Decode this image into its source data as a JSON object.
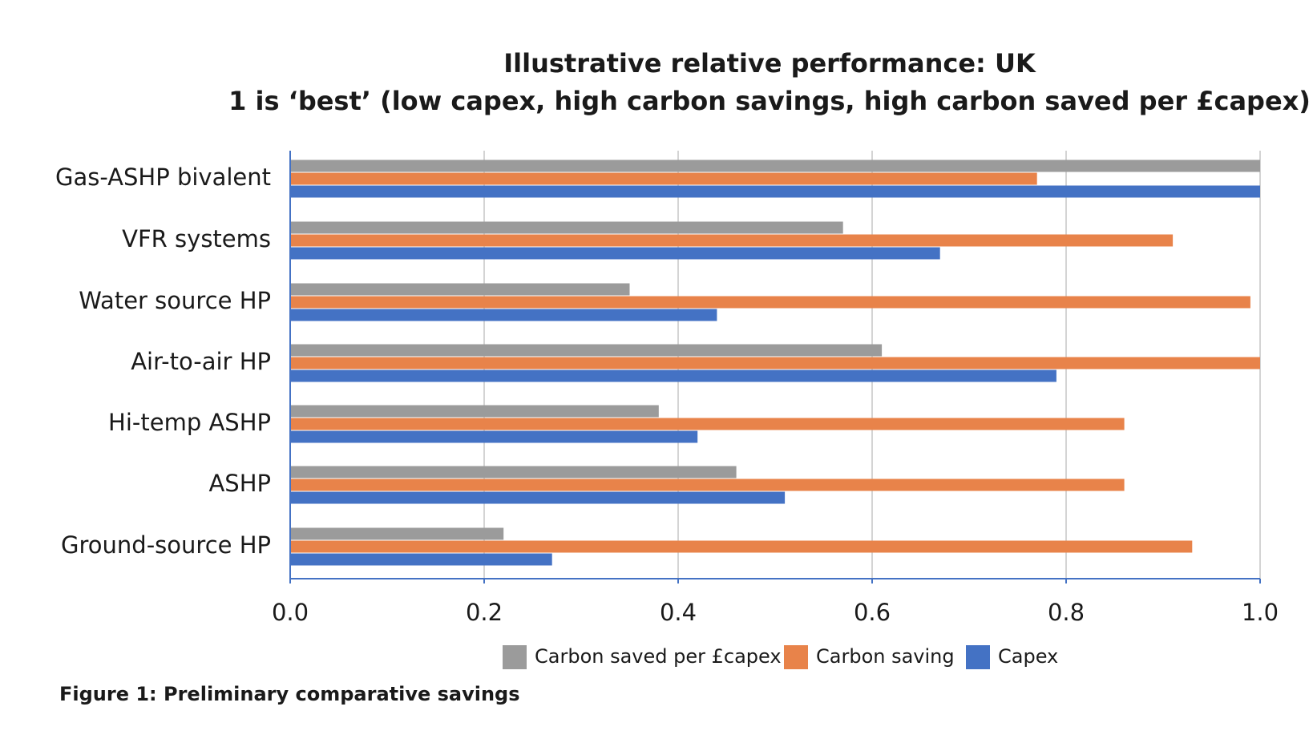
{
  "chart_data": {
    "type": "bar",
    "orientation": "horizontal",
    "title": [
      "Illustrative relative performance: UK",
      "1 is ‘best’ (low capex, high carbon savings, high carbon saved per £capex)"
    ],
    "categories": [
      "Gas-ASHP bivalent",
      "VFR systems",
      "Water source HP",
      "Air-to-air HP",
      "Hi-temp ASHP",
      "ASHP",
      "Ground-source HP"
    ],
    "series": [
      {
        "name": "Carbon saved per £capex",
        "color": "#9b9b9b",
        "values": [
          1.0,
          0.57,
          0.35,
          0.61,
          0.38,
          0.46,
          0.22
        ]
      },
      {
        "name": "Carbon saving",
        "color": "#e8834a",
        "values": [
          0.77,
          0.91,
          0.99,
          1.0,
          0.86,
          0.86,
          0.93
        ]
      },
      {
        "name": "Capex",
        "color": "#4472c4",
        "values": [
          1.0,
          0.67,
          0.44,
          0.79,
          0.42,
          0.51,
          0.27
        ]
      }
    ],
    "xlim": [
      0,
      1.0
    ],
    "xticks": [
      "0.0",
      "0.2",
      "0.4",
      "0.6",
      "0.8",
      "1.0"
    ],
    "grid": true,
    "legend_position": "bottom"
  },
  "caption": "Figure 1: Preliminary comparative savings"
}
